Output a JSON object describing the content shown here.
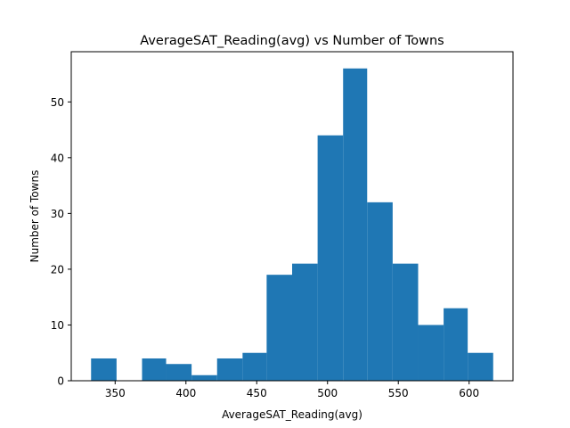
{
  "chart_data": {
    "type": "bar",
    "title": "AverageSAT_Reading(avg) vs Number of Towns",
    "xlabel": "AverageSAT_Reading(avg)",
    "ylabel": "Number of Towns",
    "bar_color": "#1f77b4",
    "xlim": [
      319,
      631
    ],
    "ylim": [
      0,
      59
    ],
    "xticks": [
      350,
      400,
      450,
      500,
      550,
      600
    ],
    "yticks": [
      0,
      10,
      20,
      30,
      40,
      50
    ],
    "grid": false,
    "bins": [
      {
        "start": 333,
        "end": 351,
        "count": 4
      },
      {
        "start": 351,
        "end": 369,
        "count": 0
      },
      {
        "start": 369,
        "end": 386,
        "count": 4
      },
      {
        "start": 386,
        "end": 404,
        "count": 3
      },
      {
        "start": 404,
        "end": 422,
        "count": 1
      },
      {
        "start": 422,
        "end": 440,
        "count": 4
      },
      {
        "start": 440,
        "end": 457,
        "count": 5
      },
      {
        "start": 457,
        "end": 475,
        "count": 19
      },
      {
        "start": 475,
        "end": 493,
        "count": 21
      },
      {
        "start": 493,
        "end": 511,
        "count": 44
      },
      {
        "start": 511,
        "end": 528,
        "count": 56
      },
      {
        "start": 528,
        "end": 546,
        "count": 32
      },
      {
        "start": 546,
        "end": 564,
        "count": 21
      },
      {
        "start": 564,
        "end": 582,
        "count": 10
      },
      {
        "start": 582,
        "end": 599,
        "count": 13
      },
      {
        "start": 599,
        "end": 617,
        "count": 5
      }
    ]
  }
}
